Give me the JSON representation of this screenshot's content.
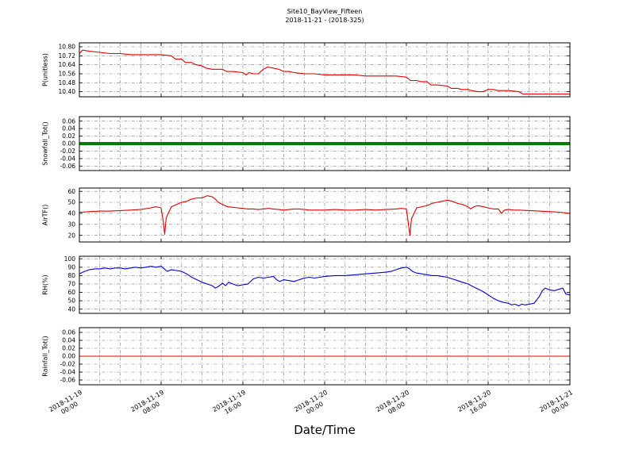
{
  "figure": {
    "title_line1": "Site10_BayView_Fifteen",
    "title_line2": "2018-11-21 - (2018-325)",
    "xlabel": "Date/Time",
    "background": "#ffffff"
  },
  "x_axis": {
    "xlim": [
      0,
      48
    ],
    "grid_step_hours": 2,
    "ticks": [
      0,
      8,
      16,
      24,
      32,
      40,
      48
    ],
    "tick_labels": [
      [
        "2018-11-19",
        "00:00"
      ],
      [
        "2018-11-19",
        "08:00"
      ],
      [
        "2018-11-19",
        "16:00"
      ],
      [
        "2018-11-20",
        "00:00"
      ],
      [
        "2018-11-20",
        "08:00"
      ],
      [
        "2018-11-20",
        "16:00"
      ],
      [
        "2018-11-21",
        "00:00"
      ]
    ]
  },
  "chart_data": [
    {
      "type": "line",
      "series_name": "P",
      "ylabel": "P(unitless)",
      "color": "#e00000",
      "line_width": 1.1,
      "ylim": [
        10.355,
        10.835
      ],
      "yticks": [
        10.8,
        10.72,
        10.64,
        10.56,
        10.48,
        10.4
      ],
      "ytick_labels": [
        "10.80",
        "10.72",
        "10.64",
        "10.56",
        "10.48",
        "10.40"
      ],
      "x": [
        0,
        0.3,
        1,
        2,
        3,
        4,
        5,
        6,
        7,
        8,
        9,
        9.4,
        10,
        10.4,
        11,
        11.4,
        12,
        12.4,
        13,
        14,
        14.4,
        15,
        16,
        16.3,
        16.6,
        17,
        17.5,
        18,
        18.4,
        19,
        19.5,
        20,
        20.5,
        21,
        22,
        23,
        24,
        25,
        26,
        27,
        28,
        29,
        30,
        31,
        32,
        32.4,
        33,
        33.4,
        34,
        34.4,
        35,
        36,
        36.4,
        37,
        37.4,
        38,
        38.4,
        39,
        39.5,
        40,
        40.5,
        41,
        42,
        43,
        43.4,
        44,
        45,
        46,
        47,
        48
      ],
      "y": [
        10.74,
        10.77,
        10.76,
        10.75,
        10.74,
        10.74,
        10.73,
        10.73,
        10.73,
        10.73,
        10.72,
        10.69,
        10.69,
        10.66,
        10.66,
        10.64,
        10.63,
        10.61,
        10.6,
        10.6,
        10.58,
        10.58,
        10.57,
        10.55,
        10.57,
        10.56,
        10.56,
        10.6,
        10.62,
        10.61,
        10.6,
        10.58,
        10.58,
        10.57,
        10.56,
        10.56,
        10.55,
        10.55,
        10.55,
        10.55,
        10.54,
        10.54,
        10.54,
        10.54,
        10.53,
        10.5,
        10.5,
        10.49,
        10.49,
        10.46,
        10.46,
        10.45,
        10.43,
        10.43,
        10.42,
        10.42,
        10.41,
        10.4,
        10.4,
        10.42,
        10.42,
        10.41,
        10.41,
        10.4,
        10.38,
        10.38,
        10.38,
        10.38,
        10.38,
        10.38
      ]
    },
    {
      "type": "line",
      "series_name": "Snowfall_Tot",
      "ylabel": "Snowfall_Tot()",
      "color": "#008000",
      "line_width": 4,
      "ylim": [
        -0.072,
        0.072
      ],
      "yticks": [
        0.06,
        0.04,
        0.02,
        0.0,
        -0.02,
        -0.04,
        -0.06
      ],
      "ytick_labels": [
        "0.06",
        "0.04",
        "0.02",
        "0.00",
        "-0.02",
        "-0.04",
        "-0.06"
      ],
      "x": [
        0,
        48
      ],
      "y": [
        0,
        0
      ]
    },
    {
      "type": "line",
      "series_name": "AirTF",
      "ylabel": "AirTF()",
      "color": "#e00000",
      "line_width": 1.1,
      "ylim": [
        14,
        63
      ],
      "yticks": [
        60,
        50,
        40,
        30,
        20
      ],
      "ytick_labels": [
        "60",
        "50",
        "40",
        "30",
        "20"
      ],
      "x": [
        0,
        1,
        2,
        3,
        4,
        5,
        6,
        7,
        7.5,
        8,
        8.2,
        8.35,
        8.5,
        9,
        9.5,
        10,
        10.5,
        11,
        11.5,
        12,
        12.5,
        13,
        13.3,
        13.6,
        14,
        14.5,
        15,
        15.5,
        16,
        16.5,
        17,
        17.5,
        18,
        18.5,
        19,
        19.5,
        20,
        20.5,
        21,
        21.5,
        22,
        22.5,
        23,
        24,
        25,
        26,
        27,
        28,
        29,
        30,
        31,
        31.5,
        32,
        32.2,
        32.35,
        32.5,
        33,
        33.5,
        34,
        34.5,
        35,
        35.5,
        36,
        36.5,
        37,
        37.5,
        38,
        38.3,
        38.6,
        39,
        39.5,
        40,
        40.5,
        41,
        41.3,
        41.6,
        42,
        42.5,
        43,
        44,
        45,
        46,
        47,
        48
      ],
      "y": [
        41,
        41.5,
        42,
        42,
        42.5,
        43,
        43.5,
        45,
        46,
        45,
        33,
        21,
        36,
        46,
        48,
        50,
        51,
        53,
        54,
        54,
        56,
        55,
        53,
        50,
        48,
        46,
        45.5,
        45,
        44.5,
        44,
        44,
        43.5,
        44,
        44.5,
        44,
        43.5,
        43,
        43.5,
        44,
        44,
        43.5,
        43,
        43,
        43,
        43.5,
        43,
        43,
        43.5,
        43,
        43.5,
        44,
        44.5,
        44,
        30,
        20,
        35,
        45,
        46,
        47,
        49,
        50,
        51,
        52,
        51,
        49,
        48,
        46,
        44,
        46,
        47,
        46,
        45,
        44,
        44,
        40,
        43,
        43.5,
        43,
        43,
        42.5,
        42,
        41.5,
        41,
        40
      ]
    },
    {
      "type": "line",
      "series_name": "RH",
      "ylabel": "RH(%)",
      "color": "#0000dd",
      "line_width": 1.1,
      "ylim": [
        35,
        103
      ],
      "yticks": [
        100,
        90,
        80,
        70,
        60,
        50,
        40
      ],
      "ytick_labels": [
        "100",
        "90",
        "80",
        "70",
        "60",
        "50",
        "40"
      ],
      "x": [
        0,
        0.5,
        1,
        1.5,
        2,
        2.5,
        3,
        3.5,
        4,
        4.5,
        5,
        5.5,
        6,
        6.5,
        7,
        7.5,
        8,
        8.3,
        8.6,
        9,
        9.5,
        10,
        10.5,
        11,
        11.5,
        12,
        12.5,
        13,
        13.3,
        13.6,
        14,
        14.3,
        14.6,
        15,
        15.5,
        16,
        16.5,
        17,
        17.5,
        18,
        18.5,
        19,
        19.3,
        19.6,
        20,
        20.5,
        21,
        21.5,
        22,
        22.5,
        23,
        23.5,
        24,
        25,
        26,
        27,
        28,
        29,
        30,
        30.5,
        31,
        31.5,
        32,
        32.3,
        32.6,
        33,
        33.5,
        34,
        34.5,
        35,
        35.5,
        36,
        36.5,
        37,
        37.5,
        38,
        38.5,
        39,
        39.5,
        40,
        40.5,
        41,
        41.5,
        42,
        42.3,
        42.6,
        43,
        43.3,
        43.6,
        44,
        44.5,
        45,
        45.3,
        45.6,
        46,
        46.5,
        47,
        47.3,
        47.6,
        48
      ],
      "y": [
        82,
        85,
        87,
        88,
        88,
        89,
        88,
        89,
        89,
        88,
        89,
        90,
        89,
        90,
        91,
        90,
        91,
        88,
        85,
        87,
        86,
        85,
        82,
        78,
        75,
        72,
        70,
        68,
        65,
        67,
        71,
        68,
        72,
        70,
        68,
        69,
        70,
        76,
        78,
        77,
        78,
        79,
        75,
        73,
        75,
        74,
        73,
        75,
        77,
        78,
        77,
        78,
        79,
        80,
        80,
        81,
        82,
        83,
        84,
        85,
        87,
        89,
        90,
        88,
        85,
        83,
        82,
        81,
        80,
        80,
        79,
        78,
        76,
        74,
        72,
        70,
        67,
        64,
        61,
        57,
        53,
        50,
        48,
        47,
        45,
        46,
        44,
        46,
        45,
        46,
        47,
        55,
        62,
        65,
        63,
        62,
        64,
        65,
        58,
        57
      ]
    },
    {
      "type": "line",
      "series_name": "Rainfall_Tot",
      "ylabel": "Rainfall_Tot()",
      "color": "#e00000",
      "line_width": 1,
      "ylim": [
        -0.072,
        0.072
      ],
      "yticks": [
        0.06,
        0.04,
        0.02,
        0.0,
        -0.02,
        -0.04,
        -0.06
      ],
      "ytick_labels": [
        "0.06",
        "0.04",
        "0.02",
        "0.00",
        "-0.02",
        "-0.04",
        "-0.06"
      ],
      "x": [
        0,
        48
      ],
      "y": [
        0,
        0
      ]
    }
  ]
}
